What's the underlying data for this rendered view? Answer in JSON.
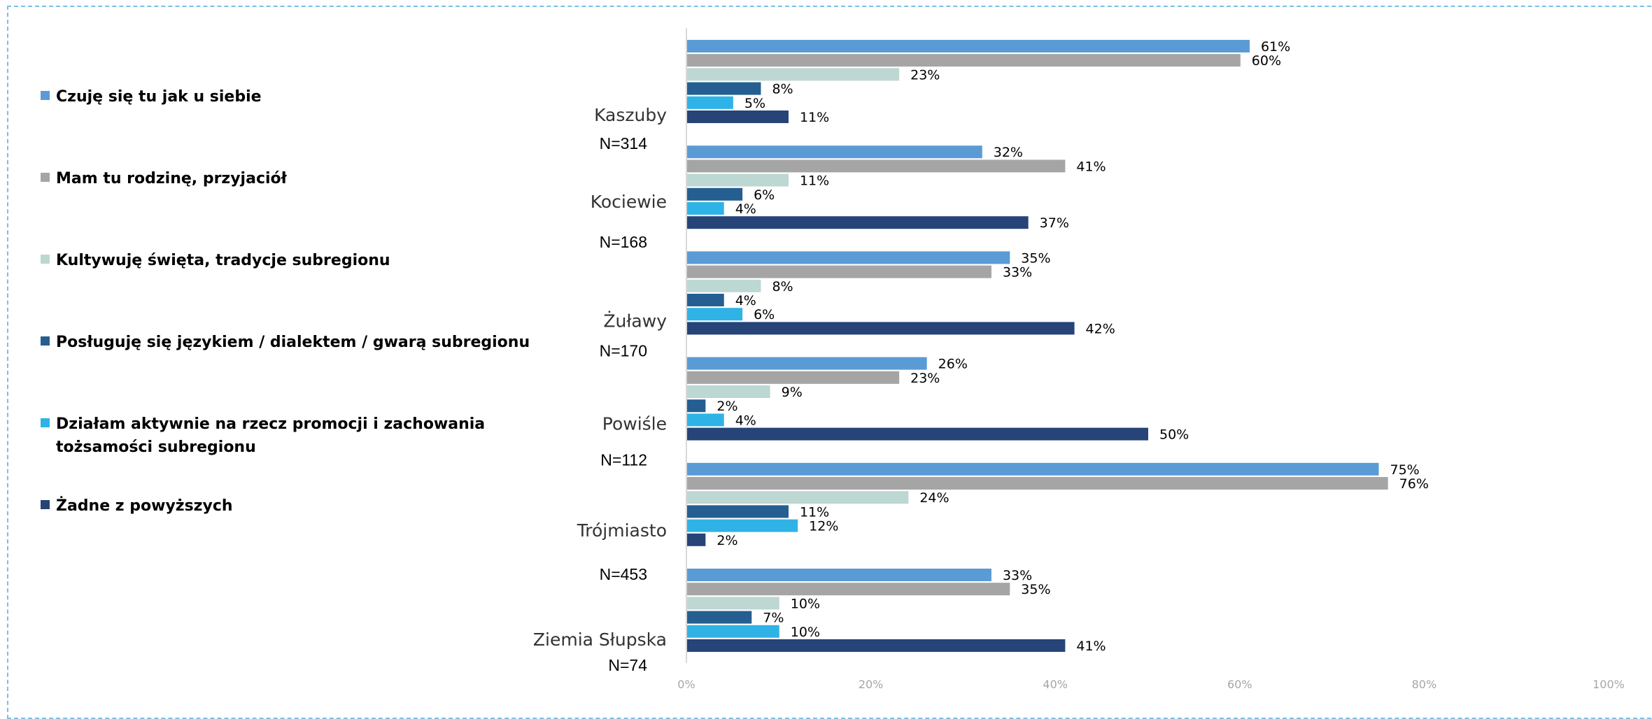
{
  "chart_data": {
    "type": "bar",
    "orientation": "horizontal",
    "categories": [
      {
        "name": "Kaszuby",
        "n": "N=314"
      },
      {
        "name": "Kociewie",
        "n": "N=168"
      },
      {
        "name": "Żuławy",
        "n": "N=170"
      },
      {
        "name": "Powiśle",
        "n": "N=112"
      },
      {
        "name": "Trójmiasto",
        "n": "N=453"
      },
      {
        "name": "Ziemia Słupska",
        "n": "N=74"
      }
    ],
    "series": [
      {
        "name": "Czuję się tu jak u siebie",
        "color": "#5b9bd5",
        "values": [
          61,
          32,
          35,
          26,
          75,
          33
        ],
        "labels": [
          "61%",
          "32%",
          "35%",
          "26%",
          "75%",
          "33%"
        ]
      },
      {
        "name": "Mam tu rodzinę, przyjaciół",
        "color": "#a5a5a5",
        "values": [
          60,
          41,
          33,
          23,
          76,
          35
        ],
        "labels": [
          "60%",
          "41%",
          "33%",
          "23%",
          "76%",
          "35%"
        ]
      },
      {
        "name": "Kultywuję święta, tradycje subregionu",
        "color": "#bdd7d3",
        "values": [
          23,
          11,
          8,
          9,
          24,
          10
        ],
        "labels": [
          "23%",
          "11%",
          "8%",
          "9%",
          "24%",
          "10%"
        ]
      },
      {
        "name": "Posługuję się językiem / dialektem / gwarą subregionu",
        "color": "#255e91",
        "values": [
          8,
          6,
          4,
          2,
          11,
          7
        ],
        "labels": [
          "8%",
          "6%",
          "4%",
          "2%",
          "11%",
          "7%"
        ]
      },
      {
        "name": "Działam aktywnie na rzecz promocji i zachowania tożsamości subregionu",
        "color": "#2fb3e6",
        "values": [
          5,
          4,
          6,
          4,
          12,
          10
        ],
        "labels": [
          "5%",
          "4%",
          "6%",
          "4%",
          "12%",
          "10%"
        ]
      },
      {
        "name": "Żadne z powyższych",
        "color": "#264478",
        "values": [
          11,
          37,
          42,
          50,
          2,
          41
        ],
        "labels": [
          "11%",
          "37%",
          "42%",
          "50%",
          "2%",
          "41%"
        ]
      }
    ],
    "xlim": [
      0,
      100
    ],
    "x_ticks": [
      "0%",
      "20%",
      "40%",
      "60%",
      "80%",
      "100%"
    ],
    "legend_position": "left",
    "grid": false
  }
}
